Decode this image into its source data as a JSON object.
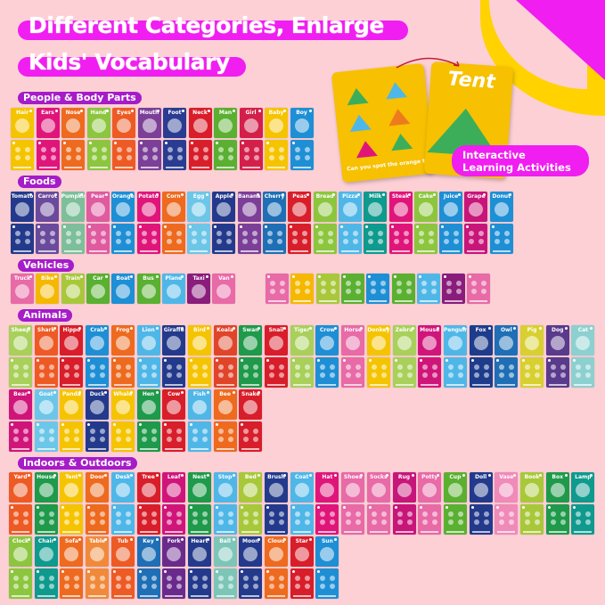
{
  "title": {
    "line1": "Different Categories, Enlarge",
    "line2": "Kids' Vocabulary"
  },
  "feature": {
    "card_word": "Tent",
    "card_question": "Can you spot the orange tent?",
    "pill": "Interactive Learning Activities"
  },
  "sections": [
    {
      "label": "People & Body Parts",
      "items": [
        {
          "label": "Hair",
          "color": "#f5c400"
        },
        {
          "label": "Ears",
          "color": "#e0157a"
        },
        {
          "label": "Nose",
          "color": "#ee6a1e"
        },
        {
          "label": "Hand",
          "color": "#8cc63e"
        },
        {
          "label": "Eyes",
          "color": "#ee5a24"
        },
        {
          "label": "Mouth",
          "color": "#7b3f98"
        },
        {
          "label": "Foot",
          "color": "#2a3c92"
        },
        {
          "label": "Neck",
          "color": "#d81e2a"
        },
        {
          "label": "Man",
          "color": "#5ab031"
        },
        {
          "label": "Girl",
          "color": "#d3204a"
        },
        {
          "label": "Baby",
          "color": "#f5c400"
        },
        {
          "label": "Boy",
          "color": "#1e8fd5"
        }
      ]
    },
    {
      "label": "Foods",
      "items": [
        {
          "label": "Tomato",
          "color": "#233a8c"
        },
        {
          "label": "Carrot",
          "color": "#6a4a9c"
        },
        {
          "label": "Pumpkin",
          "color": "#7cbf9a"
        },
        {
          "label": "Pear",
          "color": "#e05aa0"
        },
        {
          "label": "Orange",
          "color": "#1e8fd5"
        },
        {
          "label": "Potato",
          "color": "#e0157a"
        },
        {
          "label": "Corn",
          "color": "#ee6a1e"
        },
        {
          "label": "Egg",
          "color": "#6cc6e8"
        },
        {
          "label": "Apple",
          "color": "#233a8c"
        },
        {
          "label": "Banana",
          "color": "#7b3f98"
        },
        {
          "label": "Cherry",
          "color": "#1e6fb5"
        },
        {
          "label": "Peas",
          "color": "#d81e2a"
        },
        {
          "label": "Bread",
          "color": "#8cc63e"
        },
        {
          "label": "Pizza",
          "color": "#4fb7e8"
        },
        {
          "label": "Milk",
          "color": "#0f9a8e"
        },
        {
          "label": "Steak",
          "color": "#e0157a"
        },
        {
          "label": "Cake",
          "color": "#8cc63e"
        },
        {
          "label": "Juice",
          "color": "#1e8fd5"
        },
        {
          "label": "Grape",
          "color": "#c8157a"
        },
        {
          "label": "Donut",
          "color": "#1e8fd5"
        }
      ]
    },
    {
      "label": "Vehicles",
      "items": [
        {
          "label": "Truck",
          "color": "#e86aa6"
        },
        {
          "label": "Bike",
          "color": "#f5b800"
        },
        {
          "label": "Train",
          "color": "#a8c83a"
        },
        {
          "label": "Car",
          "color": "#5ab031"
        },
        {
          "label": "Boat",
          "color": "#1e8fd5"
        },
        {
          "label": "Bus",
          "color": "#5ab031"
        },
        {
          "label": "Plane",
          "color": "#4fb7e8"
        },
        {
          "label": "Taxi",
          "color": "#8a1c7c"
        },
        {
          "label": "Van",
          "color": "#e86aa6"
        }
      ]
    },
    {
      "label": "Animals",
      "items": [
        {
          "label": "Sheep",
          "color": "#a8d05a"
        },
        {
          "label": "Shark",
          "color": "#ee5a24"
        },
        {
          "label": "Hippo",
          "color": "#d81e2a"
        },
        {
          "label": "Crab",
          "color": "#1e8fd5"
        },
        {
          "label": "Frog",
          "color": "#ee6a1e"
        },
        {
          "label": "Lion",
          "color": "#4fb7e8"
        },
        {
          "label": "Giraffe",
          "color": "#233a8c"
        },
        {
          "label": "Bird",
          "color": "#f5c400"
        },
        {
          "label": "Koala",
          "color": "#e0452a"
        },
        {
          "label": "Swan",
          "color": "#1e9a4a"
        },
        {
          "label": "Snail",
          "color": "#d81e2a"
        },
        {
          "label": "Tiger",
          "color": "#a8d05a"
        },
        {
          "label": "Crow",
          "color": "#1e8fd5"
        },
        {
          "label": "Horse",
          "color": "#e86aa6"
        },
        {
          "label": "Donkey",
          "color": "#f5c400"
        },
        {
          "label": "Zebra",
          "color": "#a8d05a"
        },
        {
          "label": "Mouse",
          "color": "#d0157a"
        },
        {
          "label": "Penguin",
          "color": "#4fb7e8"
        },
        {
          "label": "Fox",
          "color": "#1e3c8c"
        },
        {
          "label": "Owl",
          "color": "#1e6fb5"
        },
        {
          "label": "Pig",
          "color": "#d8d030"
        },
        {
          "label": "Dog",
          "color": "#5a3a8c"
        },
        {
          "label": "Cat",
          "color": "#8cd0d0"
        },
        {
          "label": "Bear",
          "color": "#d0157a"
        },
        {
          "label": "Goat",
          "color": "#6cc6e8"
        },
        {
          "label": "Panda",
          "color": "#f5c400"
        },
        {
          "label": "Duck",
          "color": "#233a8c"
        },
        {
          "label": "Whale",
          "color": "#f5c400"
        },
        {
          "label": "Hen",
          "color": "#1e9a4a"
        },
        {
          "label": "Cow",
          "color": "#d81e2a"
        },
        {
          "label": "Fish",
          "color": "#4fb7e8"
        },
        {
          "label": "Bee",
          "color": "#ee6a1e"
        },
        {
          "label": "Snake",
          "color": "#d81e2a"
        }
      ]
    },
    {
      "label": "Indoors & Outdoors",
      "items": [
        {
          "label": "Yard",
          "color": "#ee5a24"
        },
        {
          "label": "House",
          "color": "#1e9a4a"
        },
        {
          "label": "Tent",
          "color": "#f5c400"
        },
        {
          "label": "Door",
          "color": "#ee6a1e"
        },
        {
          "label": "Desk",
          "color": "#4fb7e8"
        },
        {
          "label": "Tree",
          "color": "#d81e2a"
        },
        {
          "label": "Leaf",
          "color": "#d0157a"
        },
        {
          "label": "Nest",
          "color": "#1e9a4a"
        },
        {
          "label": "Stop",
          "color": "#4fb7e8"
        },
        {
          "label": "Bed",
          "color": "#a8c83a"
        },
        {
          "label": "Brush",
          "color": "#233a8c"
        },
        {
          "label": "Coat",
          "color": "#4fb7e8"
        },
        {
          "label": "Hat",
          "color": "#e0157a"
        },
        {
          "label": "Shoes",
          "color": "#e86aa6"
        },
        {
          "label": "Socks",
          "color": "#e86aa6"
        },
        {
          "label": "Rug",
          "color": "#c8157a"
        },
        {
          "label": "Potty",
          "color": "#e86aa6"
        },
        {
          "label": "Cup",
          "color": "#5ab031"
        },
        {
          "label": "Doll",
          "color": "#233a8c"
        },
        {
          "label": "Vase",
          "color": "#f08ab8"
        },
        {
          "label": "Book",
          "color": "#a8c83a"
        },
        {
          "label": "Box",
          "color": "#1e9a4a"
        },
        {
          "label": "Lamp",
          "color": "#0f9a8e"
        },
        {
          "label": "Clock",
          "color": "#8cc63e"
        },
        {
          "label": "Chair",
          "color": "#0f9a8e"
        },
        {
          "label": "Sofa",
          "color": "#ee6a1e"
        },
        {
          "label": "Table",
          "color": "#f08a3a"
        },
        {
          "label": "Tub",
          "color": "#ee5a24"
        },
        {
          "label": "Key",
          "color": "#1e6fb5"
        },
        {
          "label": "Fork",
          "color": "#6a2a8c"
        },
        {
          "label": "Heart",
          "color": "#233a8c"
        },
        {
          "label": "Ball",
          "color": "#7cc6b8"
        },
        {
          "label": "Moon",
          "color": "#233a8c"
        },
        {
          "label": "Cloud",
          "color": "#ee6a1e"
        },
        {
          "label": "Star",
          "color": "#d81e2a"
        },
        {
          "label": "Sun",
          "color": "#1e8fd5"
        }
      ]
    }
  ]
}
